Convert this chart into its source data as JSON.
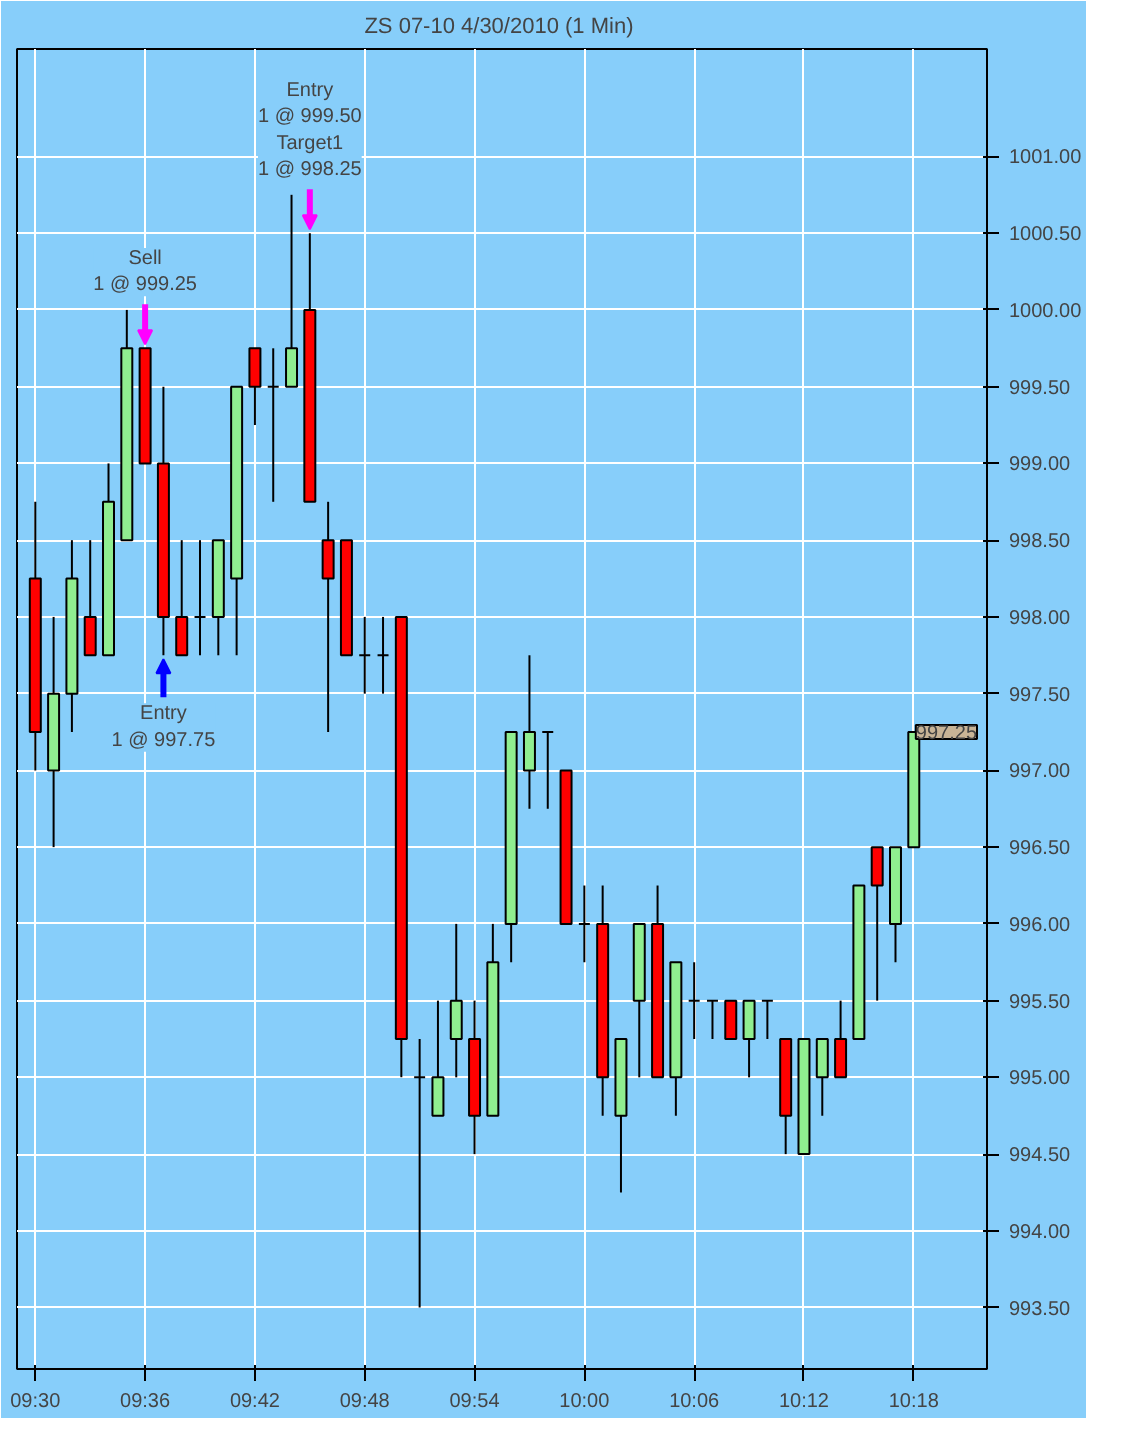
{
  "chart_data": {
    "type": "candlestick",
    "title": "ZS 07-10  4/30/2010 (1 Min)",
    "x": [
      "2010-04-30T09:30",
      "2010-04-30T09:31",
      "2010-04-30T09:32",
      "2010-04-30T09:33",
      "2010-04-30T09:34",
      "2010-04-30T09:35",
      "2010-04-30T09:36",
      "2010-04-30T09:37",
      "2010-04-30T09:38",
      "2010-04-30T09:39",
      "2010-04-30T09:40",
      "2010-04-30T09:41",
      "2010-04-30T09:42",
      "2010-04-30T09:43",
      "2010-04-30T09:44",
      "2010-04-30T09:45",
      "2010-04-30T09:46",
      "2010-04-30T09:47",
      "2010-04-30T09:48",
      "2010-04-30T09:49",
      "2010-04-30T09:50",
      "2010-04-30T09:51",
      "2010-04-30T09:52",
      "2010-04-30T09:53",
      "2010-04-30T09:54",
      "2010-04-30T09:55",
      "2010-04-30T09:56",
      "2010-04-30T09:57",
      "2010-04-30T09:58",
      "2010-04-30T09:59",
      "2010-04-30T10:00",
      "2010-04-30T10:01",
      "2010-04-30T10:02",
      "2010-04-30T10:03",
      "2010-04-30T10:04",
      "2010-04-30T10:05",
      "2010-04-30T10:06",
      "2010-04-30T10:07",
      "2010-04-30T10:08",
      "2010-04-30T10:09",
      "2010-04-30T10:10",
      "2010-04-30T10:11",
      "2010-04-30T10:12",
      "2010-04-30T10:13",
      "2010-04-30T10:14",
      "2010-04-30T10:15",
      "2010-04-30T10:16",
      "2010-04-30T10:17",
      "2010-04-30T10:18"
    ],
    "ohlc": [
      [
        998.25,
        998.75,
        997.0,
        997.25
      ],
      [
        997.0,
        998.0,
        996.5,
        997.5
      ],
      [
        997.5,
        998.5,
        997.25,
        998.25
      ],
      [
        998.0,
        998.5,
        997.75,
        997.75
      ],
      [
        997.75,
        999.0,
        997.75,
        998.75
      ],
      [
        998.5,
        1000.0,
        998.5,
        999.75
      ],
      [
        999.75,
        999.75,
        999.0,
        999.0
      ],
      [
        999.0,
        999.5,
        997.75,
        998.0
      ],
      [
        998.0,
        998.5,
        997.75,
        997.75
      ],
      [
        998.0,
        998.5,
        997.75,
        998.0
      ],
      [
        998.0,
        998.5,
        997.75,
        998.5
      ],
      [
        998.25,
        999.5,
        997.75,
        999.5
      ],
      [
        999.75,
        999.75,
        999.25,
        999.5
      ],
      [
        999.5,
        999.75,
        998.75,
        999.5
      ],
      [
        999.5,
        1000.75,
        999.5,
        999.75
      ],
      [
        1000.0,
        1000.5,
        998.75,
        998.75
      ],
      [
        998.5,
        998.75,
        997.25,
        998.25
      ],
      [
        998.5,
        998.5,
        997.75,
        997.75
      ],
      [
        997.75,
        998.0,
        997.5,
        997.75
      ],
      [
        997.75,
        998.0,
        997.5,
        997.75
      ],
      [
        998.0,
        998.0,
        995.0,
        995.25
      ],
      [
        995.0,
        995.25,
        993.5,
        995.0
      ],
      [
        994.75,
        995.5,
        994.75,
        995.0
      ],
      [
        995.25,
        996.0,
        995.0,
        995.5
      ],
      [
        995.25,
        995.5,
        994.5,
        994.75
      ],
      [
        994.75,
        996.0,
        994.75,
        995.75
      ],
      [
        996.0,
        997.25,
        995.75,
        997.25
      ],
      [
        997.0,
        997.75,
        996.75,
        997.25
      ],
      [
        997.25,
        997.25,
        996.75,
        997.25
      ],
      [
        997.0,
        997.0,
        996.0,
        996.0
      ],
      [
        996.0,
        996.25,
        995.75,
        996.0
      ],
      [
        996.0,
        996.25,
        994.75,
        995.0
      ],
      [
        994.75,
        995.25,
        994.25,
        995.25
      ],
      [
        995.5,
        996.0,
        995.0,
        996.0
      ],
      [
        996.0,
        996.25,
        995.0,
        995.0
      ],
      [
        995.0,
        995.75,
        994.75,
        995.75
      ],
      [
        995.5,
        995.75,
        995.25,
        995.5
      ],
      [
        995.5,
        995.5,
        995.25,
        995.5
      ],
      [
        995.5,
        995.5,
        995.25,
        995.25
      ],
      [
        995.25,
        995.5,
        995.0,
        995.5
      ],
      [
        995.5,
        995.5,
        995.25,
        995.5
      ],
      [
        995.25,
        995.25,
        994.5,
        994.75
      ],
      [
        994.5,
        995.25,
        994.5,
        995.25
      ],
      [
        995.0,
        995.25,
        994.75,
        995.25
      ],
      [
        995.25,
        995.5,
        995.0,
        995.0
      ],
      [
        995.25,
        996.25,
        995.25,
        996.25
      ],
      [
        996.5,
        996.5,
        995.5,
        996.25
      ],
      [
        996.0,
        996.5,
        995.75,
        996.5
      ],
      [
        996.5,
        997.25,
        996.5,
        997.25
      ]
    ],
    "colors": [
      "#ff0000",
      "#90ee90",
      "#90ee90",
      "#ff0000",
      "#90ee90",
      "#90ee90",
      "#ff0000",
      "#ff0000",
      "#ff0000",
      "#000000",
      "#90ee90",
      "#90ee90",
      "#ff0000",
      "#000000",
      "#90ee90",
      "#ff0000",
      "#ff0000",
      "#ff0000",
      "#000000",
      "#000000",
      "#ff0000",
      "#000000",
      "#90ee90",
      "#90ee90",
      "#ff0000",
      "#90ee90",
      "#90ee90",
      "#90ee90",
      "#000000",
      "#ff0000",
      "#000000",
      "#ff0000",
      "#90ee90",
      "#90ee90",
      "#ff0000",
      "#90ee90",
      "#000000",
      "#000000",
      "#ff0000",
      "#90ee90",
      "#000000",
      "#ff0000",
      "#90ee90",
      "#90ee90",
      "#ff0000",
      "#90ee90",
      "#ff0000",
      "#90ee90",
      "#90ee90"
    ],
    "xlim": [
      "2010-04-30T09:29",
      "2010-04-30T10:22"
    ],
    "xticks": [
      {
        "value": "2010-04-30T09:30",
        "label": "09:30"
      },
      {
        "value": "2010-04-30T09:36",
        "label": "09:36"
      },
      {
        "value": "2010-04-30T09:42",
        "label": "09:42"
      },
      {
        "value": "2010-04-30T09:48",
        "label": "09:48"
      },
      {
        "value": "2010-04-30T09:54",
        "label": "09:54"
      },
      {
        "value": "2010-04-30T10:00",
        "label": "10:00"
      },
      {
        "value": "2010-04-30T10:06",
        "label": "10:06"
      },
      {
        "value": "2010-04-30T10:12",
        "label": "10:12"
      },
      {
        "value": "2010-04-30T10:18",
        "label": "10:18"
      }
    ],
    "ylim": [
      993.1,
      1001.7
    ],
    "yticks": [
      {
        "value": 993.5,
        "label": "993.50"
      },
      {
        "value": 994.0,
        "label": "994.00"
      },
      {
        "value": 994.5,
        "label": "994.50"
      },
      {
        "value": 995.0,
        "label": "995.00"
      },
      {
        "value": 995.5,
        "label": "995.50"
      },
      {
        "value": 996.0,
        "label": "996.00"
      },
      {
        "value": 996.5,
        "label": "996.50"
      },
      {
        "value": 997.0,
        "label": "997.00"
      },
      {
        "value": 997.5,
        "label": "997.50"
      },
      {
        "value": 998.0,
        "label": "998.00"
      },
      {
        "value": 998.5,
        "label": "998.50"
      },
      {
        "value": 999.0,
        "label": "999.00"
      },
      {
        "value": 999.5,
        "label": "999.50"
      },
      {
        "value": 1000.0,
        "label": "1000.00"
      },
      {
        "value": 1000.5,
        "label": "1000.50"
      },
      {
        "value": 1001.0,
        "label": "1001.00"
      }
    ],
    "grid": true,
    "annotations": [
      {
        "text": "Sell\n1 @ 999.25",
        "x": "2010-04-30T09:36",
        "y": 999.75
      },
      {
        "text": "Entry\n1 @ 997.75",
        "x": "2010-04-30T09:37",
        "y": 997.75
      },
      {
        "text": "Entry\n1 @ 999.50\nTarget1\n1 @ 998.25",
        "x": "2010-04-30T09:45",
        "y": 1000.5
      },
      "997.25"
    ]
  }
}
